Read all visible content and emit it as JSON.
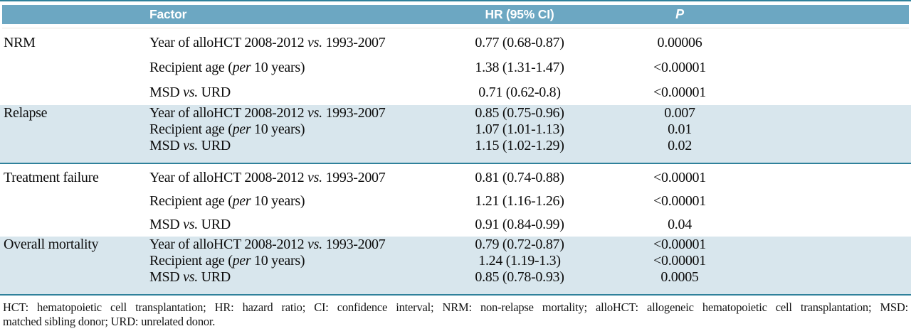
{
  "colors": {
    "header_bg": "#6ca7c2",
    "band_bg": "#d8e6ed",
    "divider": "#2f819b"
  },
  "table": {
    "header": {
      "factor": "Factor",
      "hr": "HR (95% CI)",
      "p": "P"
    },
    "sections": [
      {
        "outcome": "NRM",
        "rows": [
          {
            "f_pre": "Year of alloHCT 2008-2012 ",
            "f_it": "vs.",
            "f_post": " 1993-2007",
            "hr": "0.77 (0.68-0.87)",
            "p": "0.00006"
          },
          {
            "f_pre": "Recipient age (",
            "f_it": "per",
            "f_post": " 10 years)",
            "hr": "1.38 (1.31-1.47)",
            "p": "<0.00001"
          },
          {
            "f_pre": "MSD ",
            "f_it": "vs.",
            "f_post": " URD",
            "hr": "0.71 (0.62-0.8)",
            "p": "<0.00001"
          }
        ]
      },
      {
        "outcome": "Relapse",
        "rows": [
          {
            "f_pre": "Year of alloHCT 2008-2012 ",
            "f_it": "vs.",
            "f_post": " 1993-2007",
            "hr": "0.85 (0.75-0.96)",
            "p": "0.007"
          },
          {
            "f_pre": "Recipient age (",
            "f_it": "per",
            "f_post": " 10 years)",
            "hr": "1.07 (1.01-1.13)",
            "p": "0.01"
          },
          {
            "f_pre": "MSD ",
            "f_it": "vs.",
            "f_post": " URD",
            "hr": "1.15 (1.02-1.29)",
            "p": "0.02"
          }
        ]
      },
      {
        "outcome": "Treatment failure",
        "rows": [
          {
            "f_pre": "Year of alloHCT 2008-2012 ",
            "f_it": "vs.",
            "f_post": " 1993-2007",
            "hr": "0.81 (0.74-0.88)",
            "p": "<0.00001"
          },
          {
            "f_pre": "Recipient age (",
            "f_it": "per",
            "f_post": " 10 years)",
            "hr": "1.21 (1.16-1.26)",
            "p": "<0.00001"
          },
          {
            "f_pre": "MSD ",
            "f_it": "vs.",
            "f_post": " URD",
            "hr": "0.91 (0.84-0.99)",
            "p": "0.04"
          }
        ]
      },
      {
        "outcome": "Overall mortality",
        "rows": [
          {
            "f_pre": "Year of alloHCT 2008-2012 ",
            "f_it": "vs.",
            "f_post": " 1993-2007",
            "hr": "0.79 (0.72-0.87)",
            "p": "<0.00001"
          },
          {
            "f_pre": "Recipient age (",
            "f_it": "per",
            "f_post": " 10 years)",
            "hr": "1.24 (1.19-1.3)",
            "p": "<0.00001"
          },
          {
            "f_pre": "MSD ",
            "f_it": "vs.",
            "f_post": " URD",
            "hr": "0.85 (0.78-0.93)",
            "p": "0.0005"
          }
        ]
      }
    ],
    "footnote": {
      "line1": "HCT: hematopoietic cell transplantation; HR: hazard ratio; CI: confidence interval; NRM: non-relapse mortality; alloHCT: allogeneic hematopoietic cell transplantation; MSD:",
      "line2": "matched sibling donor; URD: unrelated donor."
    }
  }
}
